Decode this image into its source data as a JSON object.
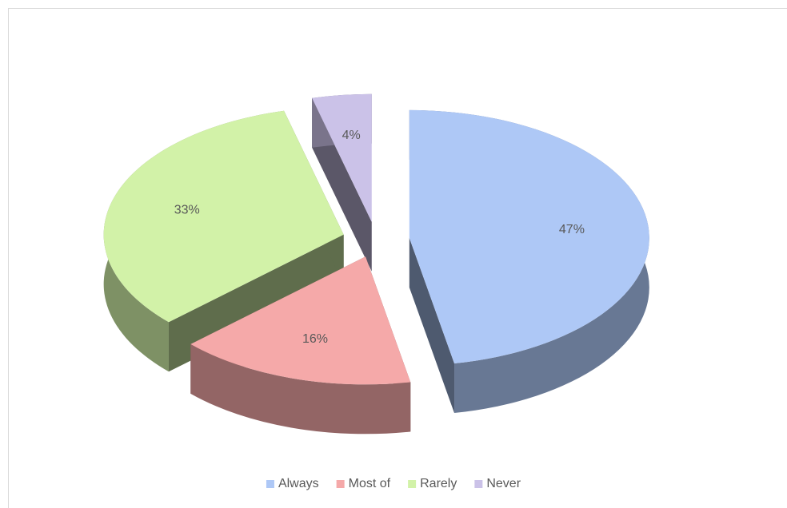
{
  "chart_data": {
    "type": "pie3d",
    "categories": [
      "Always",
      "Most of",
      "Rarely",
      "Never"
    ],
    "values": [
      47,
      16,
      33,
      4
    ],
    "value_labels": [
      "47%",
      "16%",
      "33%",
      "4%"
    ],
    "colors": [
      "#aec8f6",
      "#f5a9a9",
      "#d2f2a8",
      "#cbc2e8"
    ],
    "legend": "bottom"
  }
}
